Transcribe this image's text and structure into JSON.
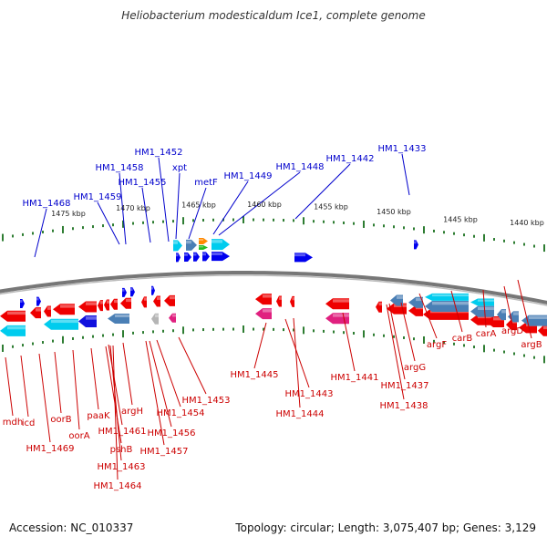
{
  "title": "Heliobacterium modesticaldum Ice1, complete genome",
  "footer": {
    "accession": "Accession: NC_010337",
    "summary": "Topology: circular; Length: 3,075,407 bp; Genes: 3,129"
  },
  "colors": {
    "forward_label": "#0000cc",
    "reverse_label": "#cc0000",
    "backbone": "#888888",
    "tick": "#2e7d32",
    "forward_feature": "#0000ee",
    "reverse_feature": "#ee0000",
    "cyan_feature": "#00ccee",
    "steelblue_feature": "#4a7fb5",
    "magenta_feature": "#e0207f",
    "gray_feature": "#b5b5b5",
    "orange_feature": "#ff8800",
    "green_feature": "#22bb22"
  },
  "scale_labels": [
    "1440 kbp",
    "1445 kbp",
    "1450 kbp",
    "1455 kbp",
    "1460 kbp",
    "1465 kbp",
    "1470 kbp",
    "1475 kbp"
  ],
  "forward_labels": [
    "HM1_1452",
    "HM1_1458",
    "xpt",
    "HM1_1455",
    "metF",
    "HM1_1449",
    "HM1_1448",
    "HM1_1442",
    "HM1_1433",
    "HM1_1459",
    "HM1_1468"
  ],
  "reverse_labels": [
    "mdh",
    "icd",
    "HM1_1469",
    "oorB",
    "oorA",
    "paaK",
    "pshB",
    "HM1_1461",
    "HM1_1463",
    "HM1_1464",
    "argH",
    "HM1_1454",
    "HM1_1456",
    "HM1_1457",
    "HM1_1453",
    "HM1_1445",
    "HM1_1443",
    "HM1_1444",
    "HM1_1441",
    "HM1_1437",
    "HM1_1438",
    "argG",
    "argF",
    "carB",
    "carA",
    "argD",
    "argB"
  ]
}
